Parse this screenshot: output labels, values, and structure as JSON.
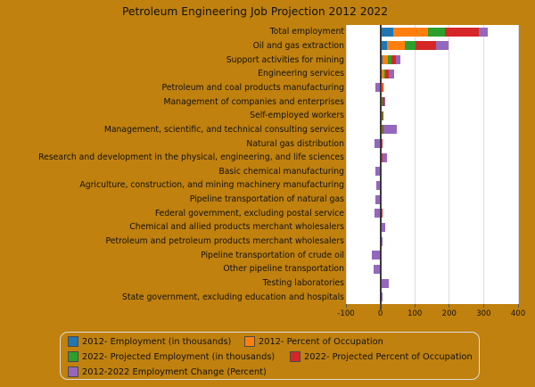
{
  "background_color": "#C0810E",
  "chart_data": {
    "type": "bar",
    "orientation": "horizontal",
    "stacked": true,
    "title": "Petroleum Engineering Job Projection 2012 2022",
    "xlabel": "",
    "ylabel": "",
    "xlim": [
      -100,
      400
    ],
    "xticks": [
      -100,
      0,
      100,
      200,
      300,
      400
    ],
    "grid": true,
    "plot_background": "#ffffff",
    "legend_position": "bottom-left-box",
    "categories": [
      "Total employment",
      "Oil and gas extraction",
      "Support activities for mining",
      "Engineering services",
      "Petroleum and coal products manufacturing",
      "Management of companies and enterprises",
      "Self-employed workers",
      "Management, scientific, and technical consulting services",
      "Natural gas distribution",
      "Research and development in the physical, engineering, and life sciences",
      "Basic chemical manufacturing",
      "Agriculture, construction, and mining machinery manufacturing",
      "Pipeline transportation of natural gas",
      "Federal government, excluding postal service",
      "Chemical and allied products merchant wholesalers",
      "Petroleum and petroleum products merchant wholesalers",
      "Pipeline transportation of crude oil",
      "Other pipeline transportation",
      "Testing laboratories",
      "State government, excluding education and hospitals"
    ],
    "series": [
      {
        "name": "2012- Employment (in thousands)",
        "color": "#1f77b4",
        "values": [
          38.5,
          20,
          6,
          3,
          1,
          1,
          1,
          1,
          1,
          1,
          0.5,
          0.5,
          0.5,
          1,
          0.5,
          0.5,
          0.5,
          0.5,
          0.5,
          0.5
        ]
      },
      {
        "name": "2012- Percent of Occupation",
        "color": "#ff7f0e",
        "values": [
          100,
          52,
          15,
          8,
          4,
          3,
          3,
          3,
          2,
          2,
          1,
          1,
          1,
          2,
          1,
          1,
          1,
          1,
          1,
          1
        ]
      },
      {
        "name": "2022- Projected Employment (in thousands)",
        "color": "#2ca02c",
        "values": [
          48.4,
          29,
          10,
          4,
          1,
          1,
          1,
          1,
          1,
          1,
          0.5,
          0.5,
          0.5,
          1,
          0.5,
          0.5,
          0.5,
          0.5,
          0.5,
          0.5
        ]
      },
      {
        "name": "2022- Projected Percent of Occupation",
        "color": "#d62728",
        "values": [
          100,
          60,
          14,
          10,
          4,
          6,
          3,
          3,
          2,
          2,
          1,
          1,
          1,
          2,
          2,
          1,
          1,
          1,
          2,
          1
        ]
      },
      {
        "name": "2012-2022 Employment Change (Percent)",
        "color": "#9467bd",
        "values": [
          26,
          36,
          12,
          15,
          -14,
          2,
          0,
          39,
          -18,
          13,
          -15,
          -13,
          -14,
          -16,
          11,
          4,
          -26,
          -20,
          21,
          1
        ]
      }
    ]
  }
}
